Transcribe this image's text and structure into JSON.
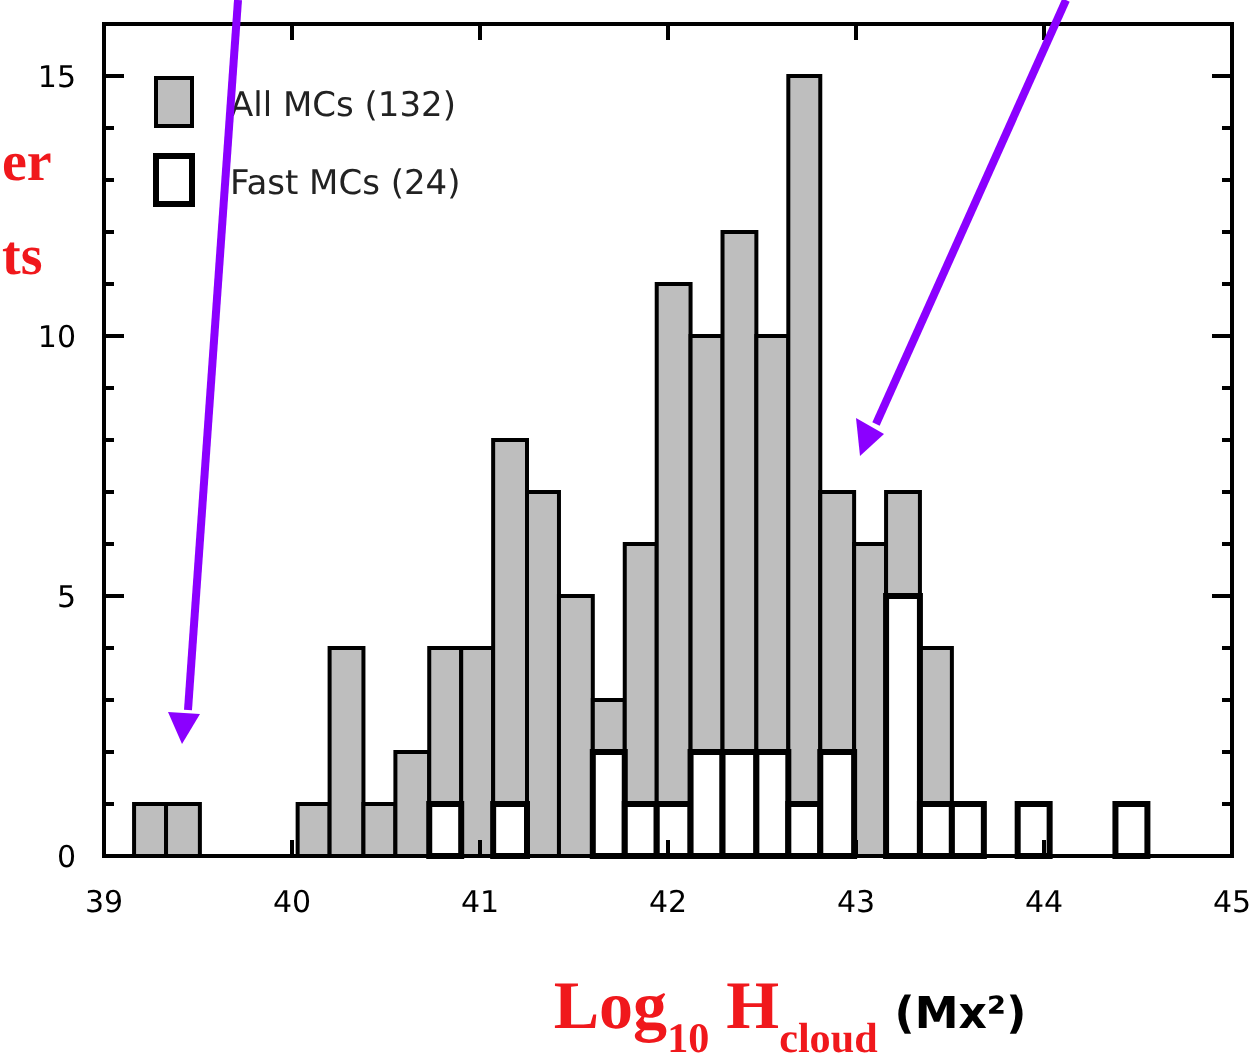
{
  "chart_data": {
    "type": "histogram",
    "xlabel": "Log$_{10}$ H$_{cloud}$ (Mx²)",
    "annotations": [
      "er",
      "ts"
    ],
    "bins": [
      39.16,
      39.33,
      39.51,
      40.03,
      40.2,
      40.38,
      40.55,
      40.73,
      40.9,
      41.07,
      41.25,
      41.42,
      41.6,
      41.77,
      41.94,
      42.12,
      42.29,
      42.47,
      42.64,
      42.81,
      42.99,
      43.16,
      43.34,
      43.51,
      43.68,
      43.86,
      44.03,
      44.38,
      44.55
    ],
    "series": [
      {
        "name": "All MCs (132)",
        "color": "#bebebe",
        "values": [
          1,
          1,
          0,
          1,
          4,
          1,
          2,
          4,
          4,
          8,
          7,
          5,
          3,
          6,
          11,
          10,
          12,
          10,
          15,
          7,
          6,
          7,
          4,
          null,
          0,
          null,
          0,
          null
        ]
      },
      {
        "name": "Fast MCs (24)",
        "color": "#ffffff",
        "values": [
          0,
          0,
          0,
          0,
          0,
          0,
          0,
          1,
          0,
          1,
          0,
          0,
          2,
          1,
          1,
          2,
          2,
          2,
          1,
          2,
          0,
          5,
          1,
          1,
          0,
          1,
          0,
          1
        ]
      }
    ],
    "xlim": [
      39,
      45
    ],
    "xticks": [
      39,
      40,
      41,
      42,
      43,
      44,
      45
    ],
    "ylim": [
      0,
      16
    ],
    "yticks": [
      0,
      {
        "value": 1,
        "label": null
      },
      {
        "value": 2,
        "label": null
      },
      {
        "value": 3,
        "label": null
      },
      {
        "value": 4,
        "label": null
      },
      5,
      {
        "value": 6,
        "label": null
      },
      {
        "value": 7,
        "label": null
      },
      {
        "value": 8,
        "label": null
      },
      {
        "value": 9,
        "label": null
      },
      10,
      {
        "value": 11,
        "label": null
      },
      {
        "value": 12,
        "label": null
      },
      {
        "value": 13,
        "label": null
      },
      {
        "value": 14,
        "label": null
      },
      15
    ],
    "legend": "top left"
  }
}
